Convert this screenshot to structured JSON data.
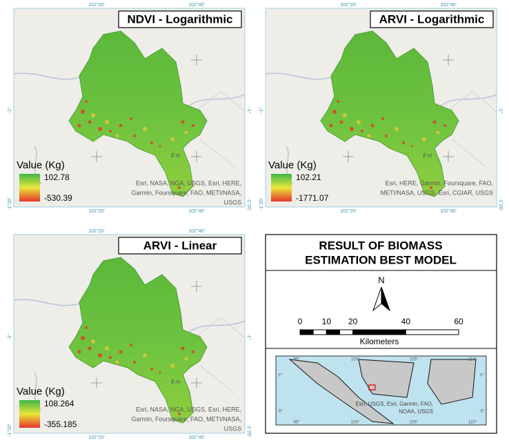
{
  "panels": [
    {
      "title": "NDVI - Logarithmic",
      "x_labels": [
        "102°20'",
        "102°40'"
      ],
      "y_labels": [
        "-1°",
        "-1°20'"
      ],
      "legend_title": "Value (Kg)",
      "legend_max": "102.78",
      "legend_min": "-530.39",
      "attribution": [
        "Esri, NASA, NGA, USGS, Esri, HERE,",
        "Garmin, Foursquare, FAO, METI/NASA,",
        "USGS"
      ],
      "map_label": "8 m"
    },
    {
      "title": "ARVI - Logarithmic",
      "x_labels": [
        "102°20'",
        "102°40'"
      ],
      "y_labels": [
        "-1°",
        "-1°20'"
      ],
      "legend_title": "Value (Kg)",
      "legend_max": "102.21",
      "legend_min": "-1771.07",
      "attribution": [
        "Esri, HERE, Garmin, Foursquare, FAO,",
        "METI/NASA, USGS, Esri, CGIAR, USGS"
      ],
      "map_label": "8 m"
    },
    {
      "title": "ARVI - Linear",
      "x_labels": [
        "102°20'",
        "102°40'"
      ],
      "y_labels": [
        "-1°",
        "-1°20'"
      ],
      "legend_title": "Value (Kg)",
      "legend_max": "108.264",
      "legend_min": "-355.185",
      "attribution": [
        "Esri, NASA, NGA, USGS, Esri, HERE,",
        "Garmin, Foursquare, FAO, METI/NASA,",
        "USGS"
      ],
      "map_label": "8 m"
    }
  ],
  "summary": {
    "title": [
      "RESULT OF BIOMASS",
      "ESTIMATION BEST MODEL"
    ],
    "north": "N",
    "scale_ticks": [
      0,
      10,
      20,
      40,
      60
    ],
    "scale_unit": "Kilometers",
    "inset_x_labels": [
      "95°",
      "100°",
      "105°",
      "110°"
    ],
    "inset_y_labels": [
      "0°",
      "-5°"
    ],
    "inset_attribution": [
      "Esri, USGS, Esri, Garmin, FAO,",
      "NOAA, USGS"
    ]
  }
}
